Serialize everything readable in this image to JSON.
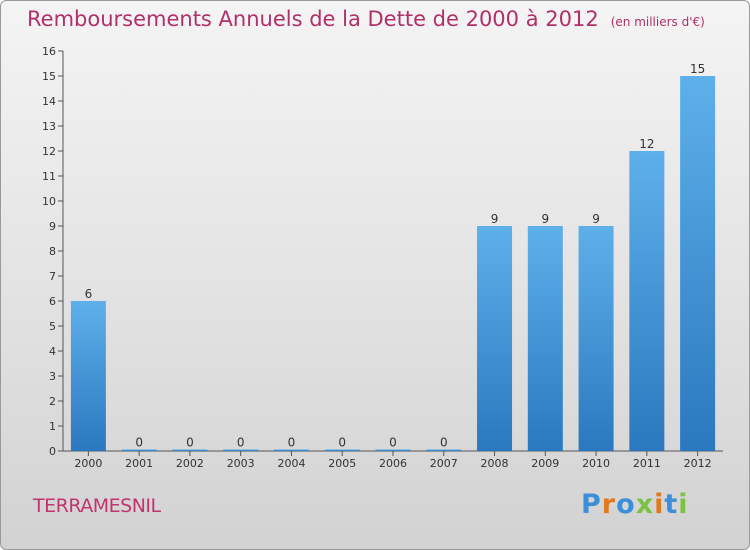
{
  "header": {
    "title": "Remboursements Annuels de la Dette de 2000 à 2012",
    "subtitle": "(en milliers d'€)"
  },
  "footer": {
    "commune": "TERRAMESNIL",
    "logo_letters": [
      "P",
      "r",
      "o",
      "x",
      "i",
      "t",
      "i"
    ],
    "logo_colors": [
      "#3a8fd8",
      "#e07a1f",
      "#3a8fd8",
      "#7cc242",
      "#e07a1f",
      "#3a8fd8",
      "#7cc242"
    ]
  },
  "colors": {
    "bar_top": "#5eb0ea",
    "bar_bottom": "#2a78bf",
    "text": "#333333"
  },
  "chart_data": {
    "type": "bar",
    "categories": [
      "2000",
      "2001",
      "2002",
      "2003",
      "2004",
      "2005",
      "2006",
      "2007",
      "2008",
      "2009",
      "2010",
      "2011",
      "2012"
    ],
    "values": [
      6,
      0,
      0,
      0,
      0,
      0,
      0,
      0,
      9,
      9,
      9,
      12,
      15
    ],
    "data_labels": [
      "6",
      "0",
      "0",
      "0",
      "0",
      "0",
      "0",
      "0",
      "9",
      "9",
      "9",
      "12",
      "15"
    ],
    "ylim": [
      0,
      16
    ],
    "yticks": [
      "0",
      "1",
      "2",
      "3",
      "4",
      "5",
      "6",
      "7",
      "8",
      "9",
      "10",
      "11",
      "12",
      "13",
      "14",
      "15",
      "16"
    ],
    "xlabel": "",
    "ylabel": "",
    "grid": false,
    "legend": "none"
  }
}
